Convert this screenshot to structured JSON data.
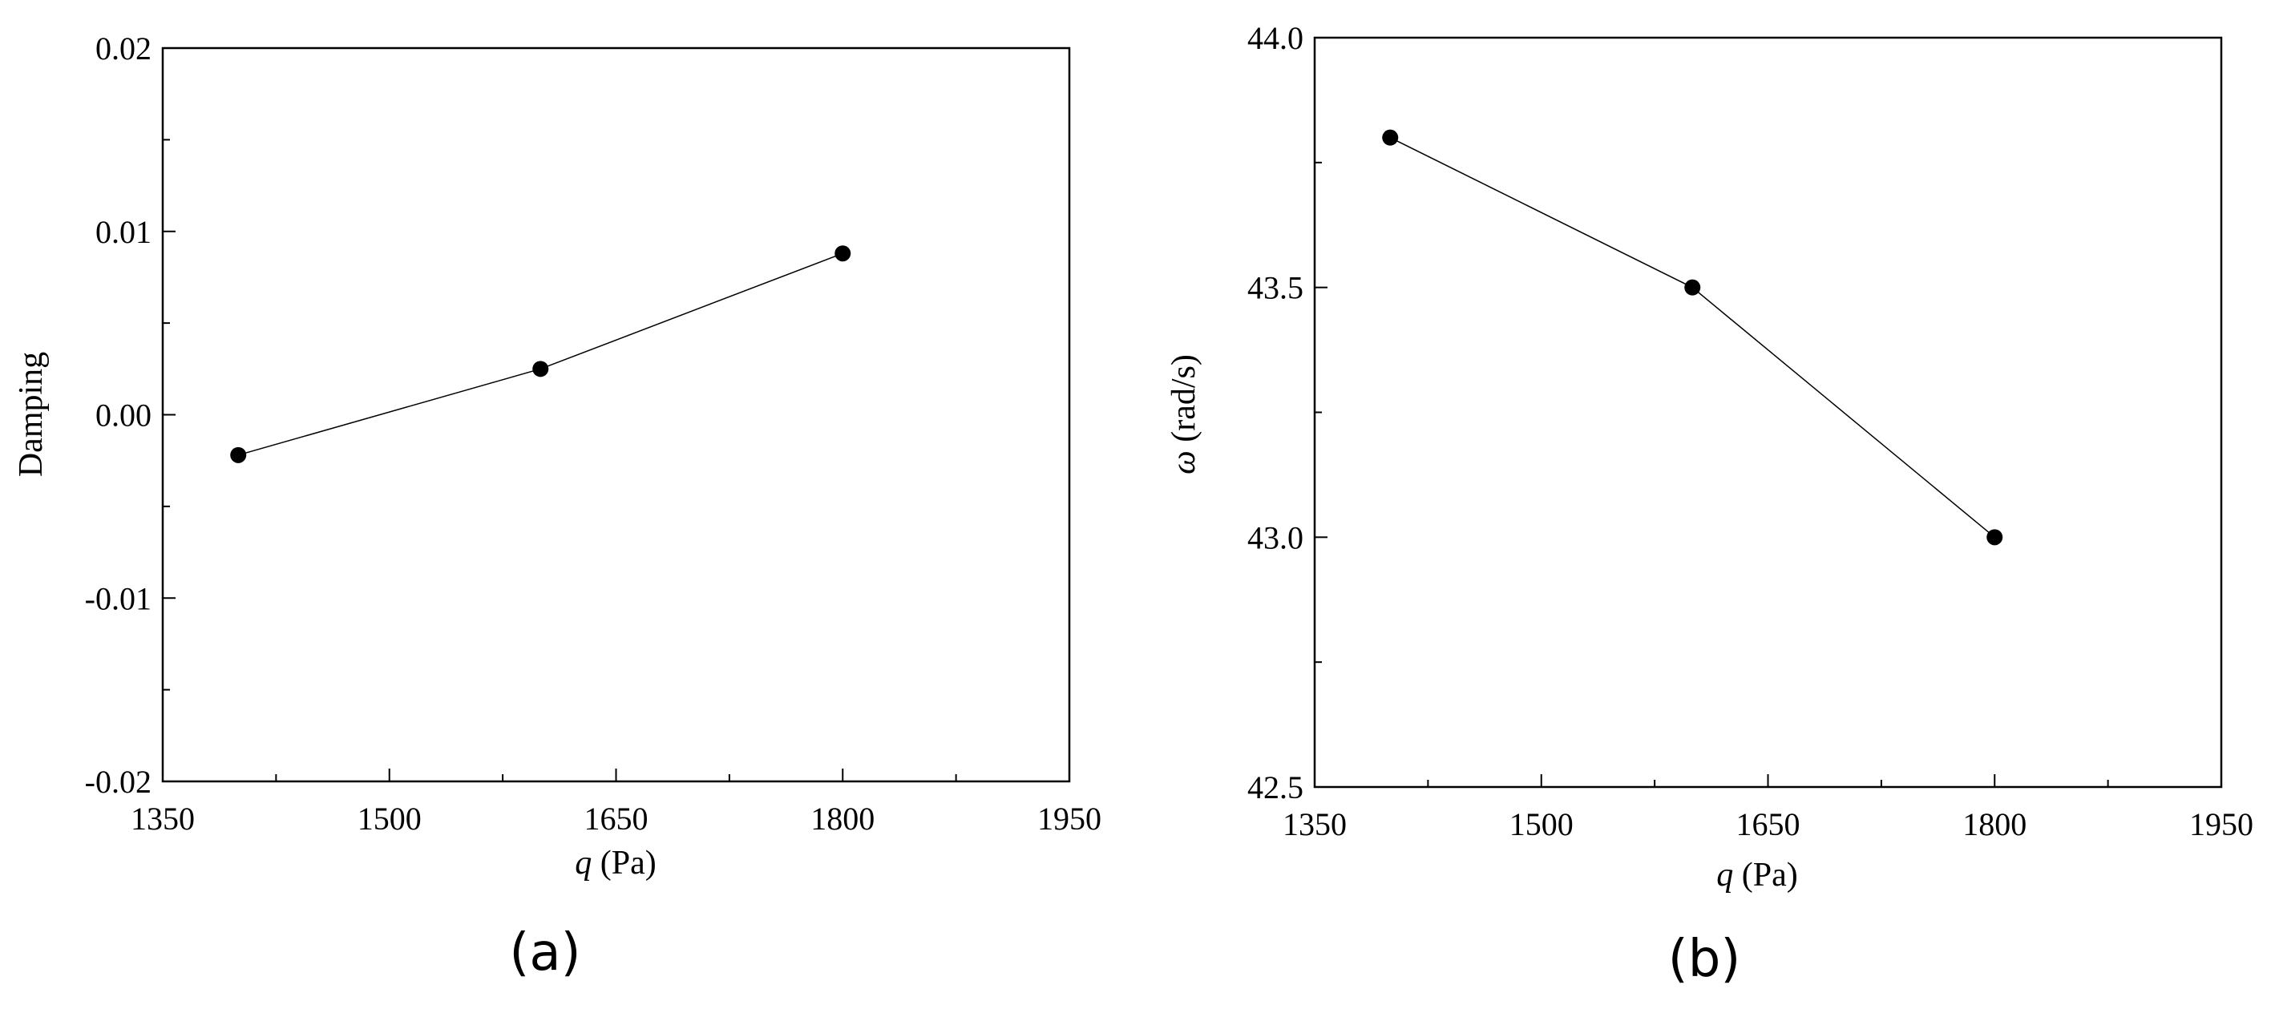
{
  "chart_data": [
    {
      "type": "line",
      "panel_label": "(a)",
      "title": "",
      "xlabel_var": "q",
      "xlabel_unit": " (Pa)",
      "ylabel": "Damping",
      "xlim": [
        1350,
        1950
      ],
      "ylim": [
        -0.02,
        0.02
      ],
      "x_ticks": [
        1350,
        1500,
        1650,
        1800,
        1950
      ],
      "x_tick_labels": [
        "1350",
        "1500",
        "1650",
        "1800",
        "1950"
      ],
      "y_ticks": [
        -0.02,
        -0.01,
        0.0,
        0.01,
        0.02
      ],
      "y_tick_labels": [
        "-0.02",
        "-0.01",
        "0.00",
        "0.01",
        "0.02"
      ],
      "grid": false,
      "series": [
        {
          "x": [
            1400,
            1600,
            1800
          ],
          "y": [
            -0.0022,
            0.0025,
            0.0088
          ]
        }
      ]
    },
    {
      "type": "line",
      "panel_label": "(b)",
      "title": "",
      "xlabel_var": "q",
      "xlabel_unit": " (Pa)",
      "ylabel_var": "ω",
      "ylabel_unit": " (rad/s)",
      "xlim": [
        1350,
        1950
      ],
      "ylim": [
        42.5,
        44.0
      ],
      "x_ticks": [
        1350,
        1500,
        1650,
        1800,
        1950
      ],
      "x_tick_labels": [
        "1350",
        "1500",
        "1650",
        "1800",
        "1950"
      ],
      "y_ticks": [
        42.5,
        43.0,
        43.5,
        44.0
      ],
      "y_tick_labels": [
        "42.5",
        "43.0",
        "43.5",
        "44.0"
      ],
      "grid": false,
      "series": [
        {
          "x": [
            1400,
            1600,
            1800
          ],
          "y": [
            43.8,
            43.5,
            43.0
          ]
        }
      ]
    }
  ]
}
